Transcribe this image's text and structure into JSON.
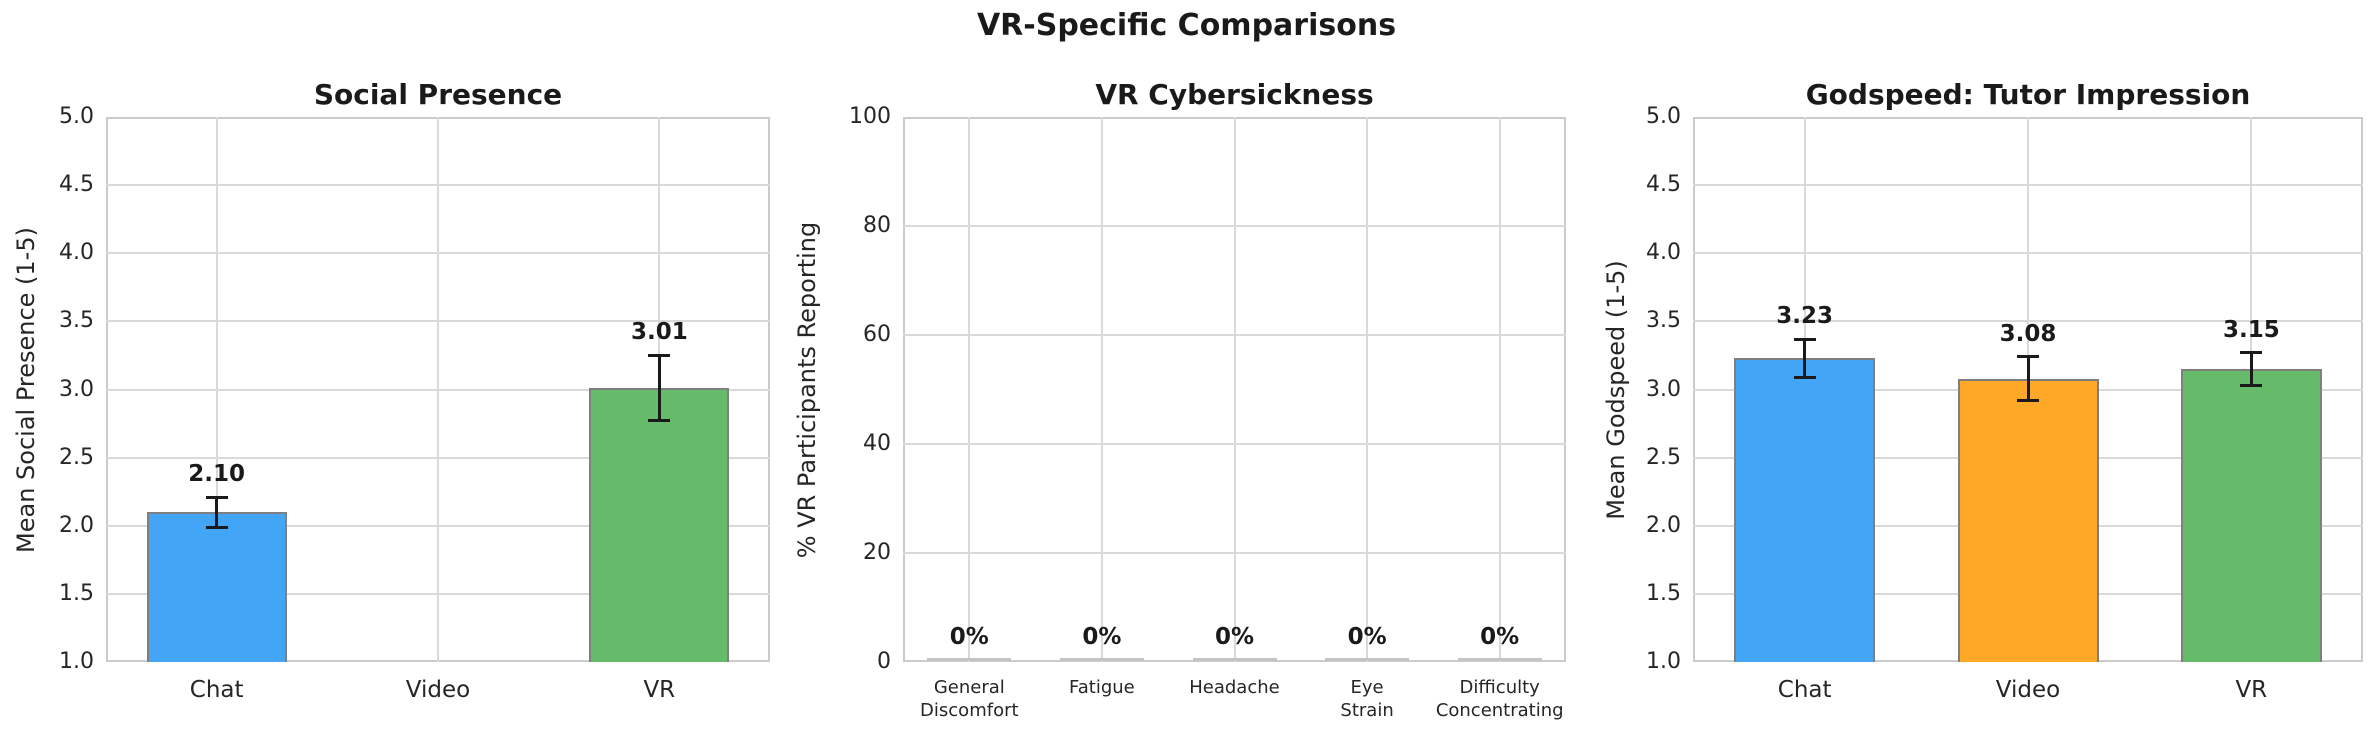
{
  "figure": {
    "title": "VR-Specific Comparisons"
  },
  "palette": {
    "chat": "#42A5F5",
    "video": "#FFA726",
    "vr": "#66BB6A",
    "bar_edge": "#7F7F7F",
    "zero_bar_edge": "#C4C4C4",
    "grid": "#D9D9D9",
    "error_bar": "#1A1A1A",
    "text": "#262626"
  },
  "chart_data": [
    {
      "type": "bar",
      "title": "Social Presence",
      "ylabel": "Mean Social Presence (1-5)",
      "ylim": [
        1.0,
        5.0
      ],
      "ytick_labels": [
        "5.0",
        "4.5",
        "4.0",
        "3.5",
        "3.0",
        "2.5",
        "2.0",
        "1.5",
        "1.0"
      ],
      "grid": true,
      "legend": "none",
      "categories": [
        "Chat",
        "Video",
        "VR"
      ],
      "values": [
        2.1,
        null,
        3.01
      ],
      "errors": [
        0.11,
        null,
        0.24
      ],
      "bar_labels": [
        "2.10",
        null,
        "3.01"
      ],
      "bar_colors": [
        "#42A5F5",
        "#FFA726",
        "#66BB6A"
      ]
    },
    {
      "type": "bar",
      "title": "VR Cybersickness",
      "ylabel": "% VR Participants Reporting",
      "ylim": [
        0,
        100
      ],
      "ytick_labels": [
        "100",
        "80",
        "60",
        "40",
        "20",
        "0"
      ],
      "grid": true,
      "legend": "none",
      "categories": [
        "General\nDiscomfort",
        "Fatigue",
        "Headache",
        "Eye\nStrain",
        "Difficulty\nConcentrating"
      ],
      "values": [
        0,
        0,
        0,
        0,
        0
      ],
      "errors": [
        null,
        null,
        null,
        null,
        null
      ],
      "bar_labels": [
        "0%",
        "0%",
        "0%",
        "0%",
        "0%"
      ],
      "bar_colors": [
        "#42A5F5",
        "#FFA726",
        "#66BB6A",
        "#EF5350",
        "#AB47BC"
      ]
    },
    {
      "type": "bar",
      "title": "Godspeed: Tutor Impression",
      "ylabel": "Mean Godspeed (1-5)",
      "ylim": [
        1.0,
        5.0
      ],
      "ytick_labels": [
        "5.0",
        "4.5",
        "4.0",
        "3.5",
        "3.0",
        "2.5",
        "2.0",
        "1.5",
        "1.0"
      ],
      "grid": true,
      "legend": "none",
      "categories": [
        "Chat",
        "Video",
        "VR"
      ],
      "values": [
        3.23,
        3.08,
        3.15
      ],
      "errors": [
        0.14,
        0.16,
        0.12
      ],
      "bar_labels": [
        "3.23",
        "3.08",
        "3.15"
      ],
      "bar_colors": [
        "#42A5F5",
        "#FFA726",
        "#66BB6A"
      ]
    }
  ]
}
